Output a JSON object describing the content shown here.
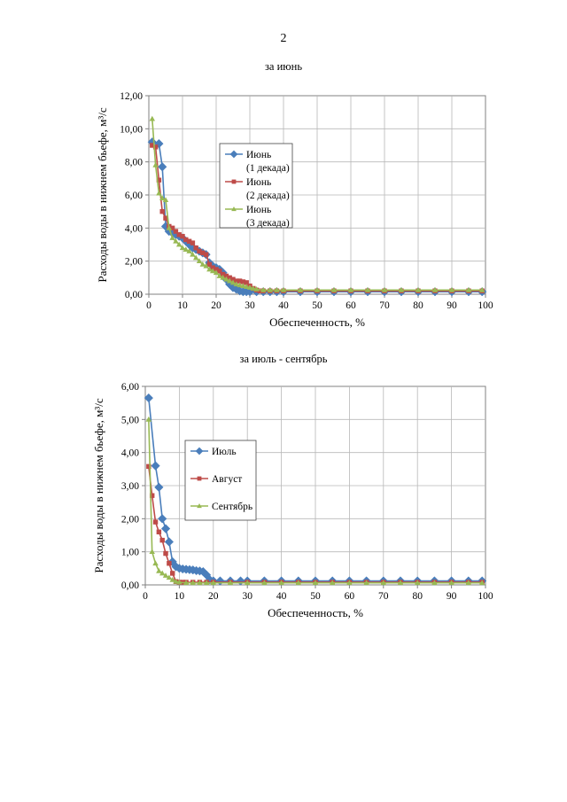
{
  "page": {
    "number": "2"
  },
  "colors": {
    "blue": "#4A7EBB",
    "red": "#BE4B48",
    "green": "#98B954",
    "grid": "#b8b8b8",
    "axis": "#808080"
  },
  "chart_data": [
    {
      "type": "line",
      "title": "за июнь",
      "xlabel": "Обеспеченность, %",
      "ylabel": "Расходы воды в нижнем бьефе, м³/с",
      "xlim": [
        0,
        100
      ],
      "ylim": [
        0,
        12
      ],
      "xticks": [
        "0",
        "10",
        "20",
        "30",
        "40",
        "50",
        "60",
        "70",
        "80",
        "90",
        "100"
      ],
      "yticks": [
        "0,00",
        "2,00",
        "4,00",
        "6,00",
        "8,00",
        "10,00",
        "12,00"
      ],
      "grid": true,
      "legend_position": "inside-upper-center",
      "series": [
        {
          "name_lines": [
            "Июнь",
            "(1 декада)"
          ],
          "color": "#4A7EBB",
          "marker": "diamond",
          "x": [
            1,
            3,
            4,
            5,
            6,
            7,
            8,
            9,
            10,
            11,
            12,
            13,
            14,
            15,
            16,
            17,
            18,
            19,
            20,
            21,
            22,
            23,
            24,
            25,
            26,
            27,
            28,
            29,
            30,
            32,
            34,
            36,
            38,
            40,
            45,
            50,
            55,
            60,
            65,
            70,
            75,
            80,
            85,
            90,
            95,
            99
          ],
          "y": [
            9.2,
            9.1,
            7.7,
            4.1,
            3.8,
            3.7,
            3.6,
            3.5,
            3.4,
            3.2,
            3.0,
            2.8,
            2.7,
            2.6,
            2.5,
            2.4,
            1.9,
            1.7,
            1.6,
            1.5,
            1.3,
            0.9,
            0.6,
            0.4,
            0.3,
            0.2,
            0.15,
            0.15,
            0.15,
            0.15,
            0.15,
            0.15,
            0.15,
            0.15,
            0.15,
            0.15,
            0.15,
            0.15,
            0.15,
            0.15,
            0.15,
            0.15,
            0.15,
            0.15,
            0.15,
            0.15
          ]
        },
        {
          "name_lines": [
            "Июнь",
            "(2 декада)"
          ],
          "color": "#BE4B48",
          "marker": "square",
          "x": [
            1,
            2,
            3,
            4,
            5,
            6,
            7,
            8,
            9,
            10,
            11,
            12,
            13,
            14,
            15,
            16,
            17,
            18,
            19,
            20,
            21,
            22,
            23,
            24,
            25,
            26,
            27,
            28,
            29,
            30,
            31,
            32,
            33,
            34,
            36,
            38,
            40,
            45,
            50,
            55,
            60,
            65,
            70,
            75,
            80,
            85,
            90,
            95,
            99
          ],
          "y": [
            9.0,
            8.9,
            6.9,
            5.0,
            4.6,
            4.1,
            4.0,
            3.8,
            3.6,
            3.5,
            3.3,
            3.2,
            3.1,
            2.8,
            2.6,
            2.5,
            2.4,
            1.8,
            1.6,
            1.5,
            1.4,
            1.2,
            1.1,
            1.0,
            0.9,
            0.8,
            0.8,
            0.75,
            0.7,
            0.5,
            0.35,
            0.25,
            0.2,
            0.2,
            0.2,
            0.2,
            0.2,
            0.2,
            0.2,
            0.2,
            0.2,
            0.2,
            0.2,
            0.2,
            0.2,
            0.2,
            0.2,
            0.2,
            0.2
          ]
        },
        {
          "name_lines": [
            "Июнь",
            "(3 декада)"
          ],
          "color": "#98B954",
          "marker": "triangle",
          "x": [
            1,
            2,
            3,
            4,
            5,
            6,
            7,
            8,
            9,
            10,
            11,
            12,
            13,
            14,
            15,
            16,
            17,
            18,
            19,
            20,
            21,
            22,
            23,
            24,
            25,
            26,
            27,
            28,
            29,
            30,
            31,
            32,
            34,
            36,
            38,
            40,
            45,
            50,
            55,
            60,
            65,
            70,
            75,
            80,
            85,
            90,
            95,
            99
          ],
          "y": [
            10.6,
            7.8,
            6.1,
            5.8,
            5.7,
            4.0,
            3.4,
            3.2,
            3.0,
            2.8,
            2.7,
            2.6,
            2.4,
            2.2,
            2.0,
            1.8,
            1.7,
            1.5,
            1.4,
            1.3,
            1.1,
            1.0,
            0.9,
            0.8,
            0.7,
            0.6,
            0.55,
            0.5,
            0.45,
            0.4,
            0.35,
            0.3,
            0.25,
            0.25,
            0.25,
            0.25,
            0.25,
            0.25,
            0.25,
            0.25,
            0.25,
            0.25,
            0.25,
            0.25,
            0.25,
            0.25,
            0.25,
            0.25
          ]
        }
      ]
    },
    {
      "type": "line",
      "title": "за июль - сентябрь",
      "xlabel": "Обеспеченность, %",
      "ylabel": "Расходы воды в нижнем бьефе, м³/с",
      "xlim": [
        0,
        100
      ],
      "ylim": [
        0,
        6
      ],
      "xticks": [
        "0",
        "10",
        "20",
        "30",
        "40",
        "50",
        "60",
        "70",
        "80",
        "90",
        "100"
      ],
      "yticks": [
        "0,00",
        "1,00",
        "2,00",
        "3,00",
        "4,00",
        "5,00",
        "6,00"
      ],
      "grid": true,
      "legend_position": "inside-left-center",
      "series": [
        {
          "name_lines": [
            "Июль"
          ],
          "color": "#4A7EBB",
          "marker": "diamond",
          "x": [
            1,
            3,
            4,
            5,
            6,
            7,
            8,
            9,
            10,
            11,
            12,
            13,
            14,
            15,
            16,
            17,
            18,
            19,
            20,
            22,
            25,
            28,
            30,
            35,
            40,
            45,
            50,
            55,
            60,
            65,
            70,
            75,
            80,
            85,
            90,
            95,
            99
          ],
          "y": [
            5.65,
            3.6,
            2.95,
            2.0,
            1.7,
            1.3,
            0.7,
            0.55,
            0.5,
            0.48,
            0.47,
            0.46,
            0.45,
            0.43,
            0.42,
            0.4,
            0.3,
            0.15,
            0.12,
            0.12,
            0.12,
            0.12,
            0.12,
            0.12,
            0.12,
            0.12,
            0.12,
            0.12,
            0.12,
            0.12,
            0.12,
            0.12,
            0.12,
            0.12,
            0.12,
            0.12,
            0.12
          ]
        },
        {
          "name_lines": [
            "Август"
          ],
          "color": "#BE4B48",
          "marker": "square",
          "x": [
            1,
            2,
            3,
            4,
            5,
            6,
            7,
            8,
            9,
            10,
            11,
            12,
            14,
            16,
            18,
            20,
            25,
            30,
            35,
            40,
            45,
            50,
            55,
            60,
            65,
            70,
            75,
            80,
            85,
            90,
            95,
            99
          ],
          "y": [
            3.58,
            2.7,
            1.9,
            1.6,
            1.35,
            0.95,
            0.65,
            0.35,
            0.1,
            0.08,
            0.08,
            0.08,
            0.08,
            0.08,
            0.08,
            0.08,
            0.08,
            0.08,
            0.08,
            0.08,
            0.08,
            0.08,
            0.08,
            0.08,
            0.08,
            0.08,
            0.08,
            0.08,
            0.08,
            0.08,
            0.08,
            0.08
          ]
        },
        {
          "name_lines": [
            "Сентябрь"
          ],
          "color": "#98B954",
          "marker": "triangle",
          "x": [
            1,
            2,
            3,
            4,
            5,
            6,
            7,
            8,
            9,
            10,
            12,
            14,
            16,
            18,
            20,
            25,
            30,
            35,
            40,
            45,
            50,
            55,
            60,
            65,
            70,
            75,
            80,
            85,
            90,
            95,
            99
          ],
          "y": [
            5.0,
            1.0,
            0.65,
            0.42,
            0.35,
            0.28,
            0.22,
            0.15,
            0.1,
            0.08,
            0.06,
            0.06,
            0.06,
            0.06,
            0.06,
            0.06,
            0.06,
            0.06,
            0.06,
            0.06,
            0.06,
            0.06,
            0.06,
            0.06,
            0.06,
            0.06,
            0.06,
            0.06,
            0.06,
            0.06,
            0.06
          ]
        }
      ]
    }
  ]
}
